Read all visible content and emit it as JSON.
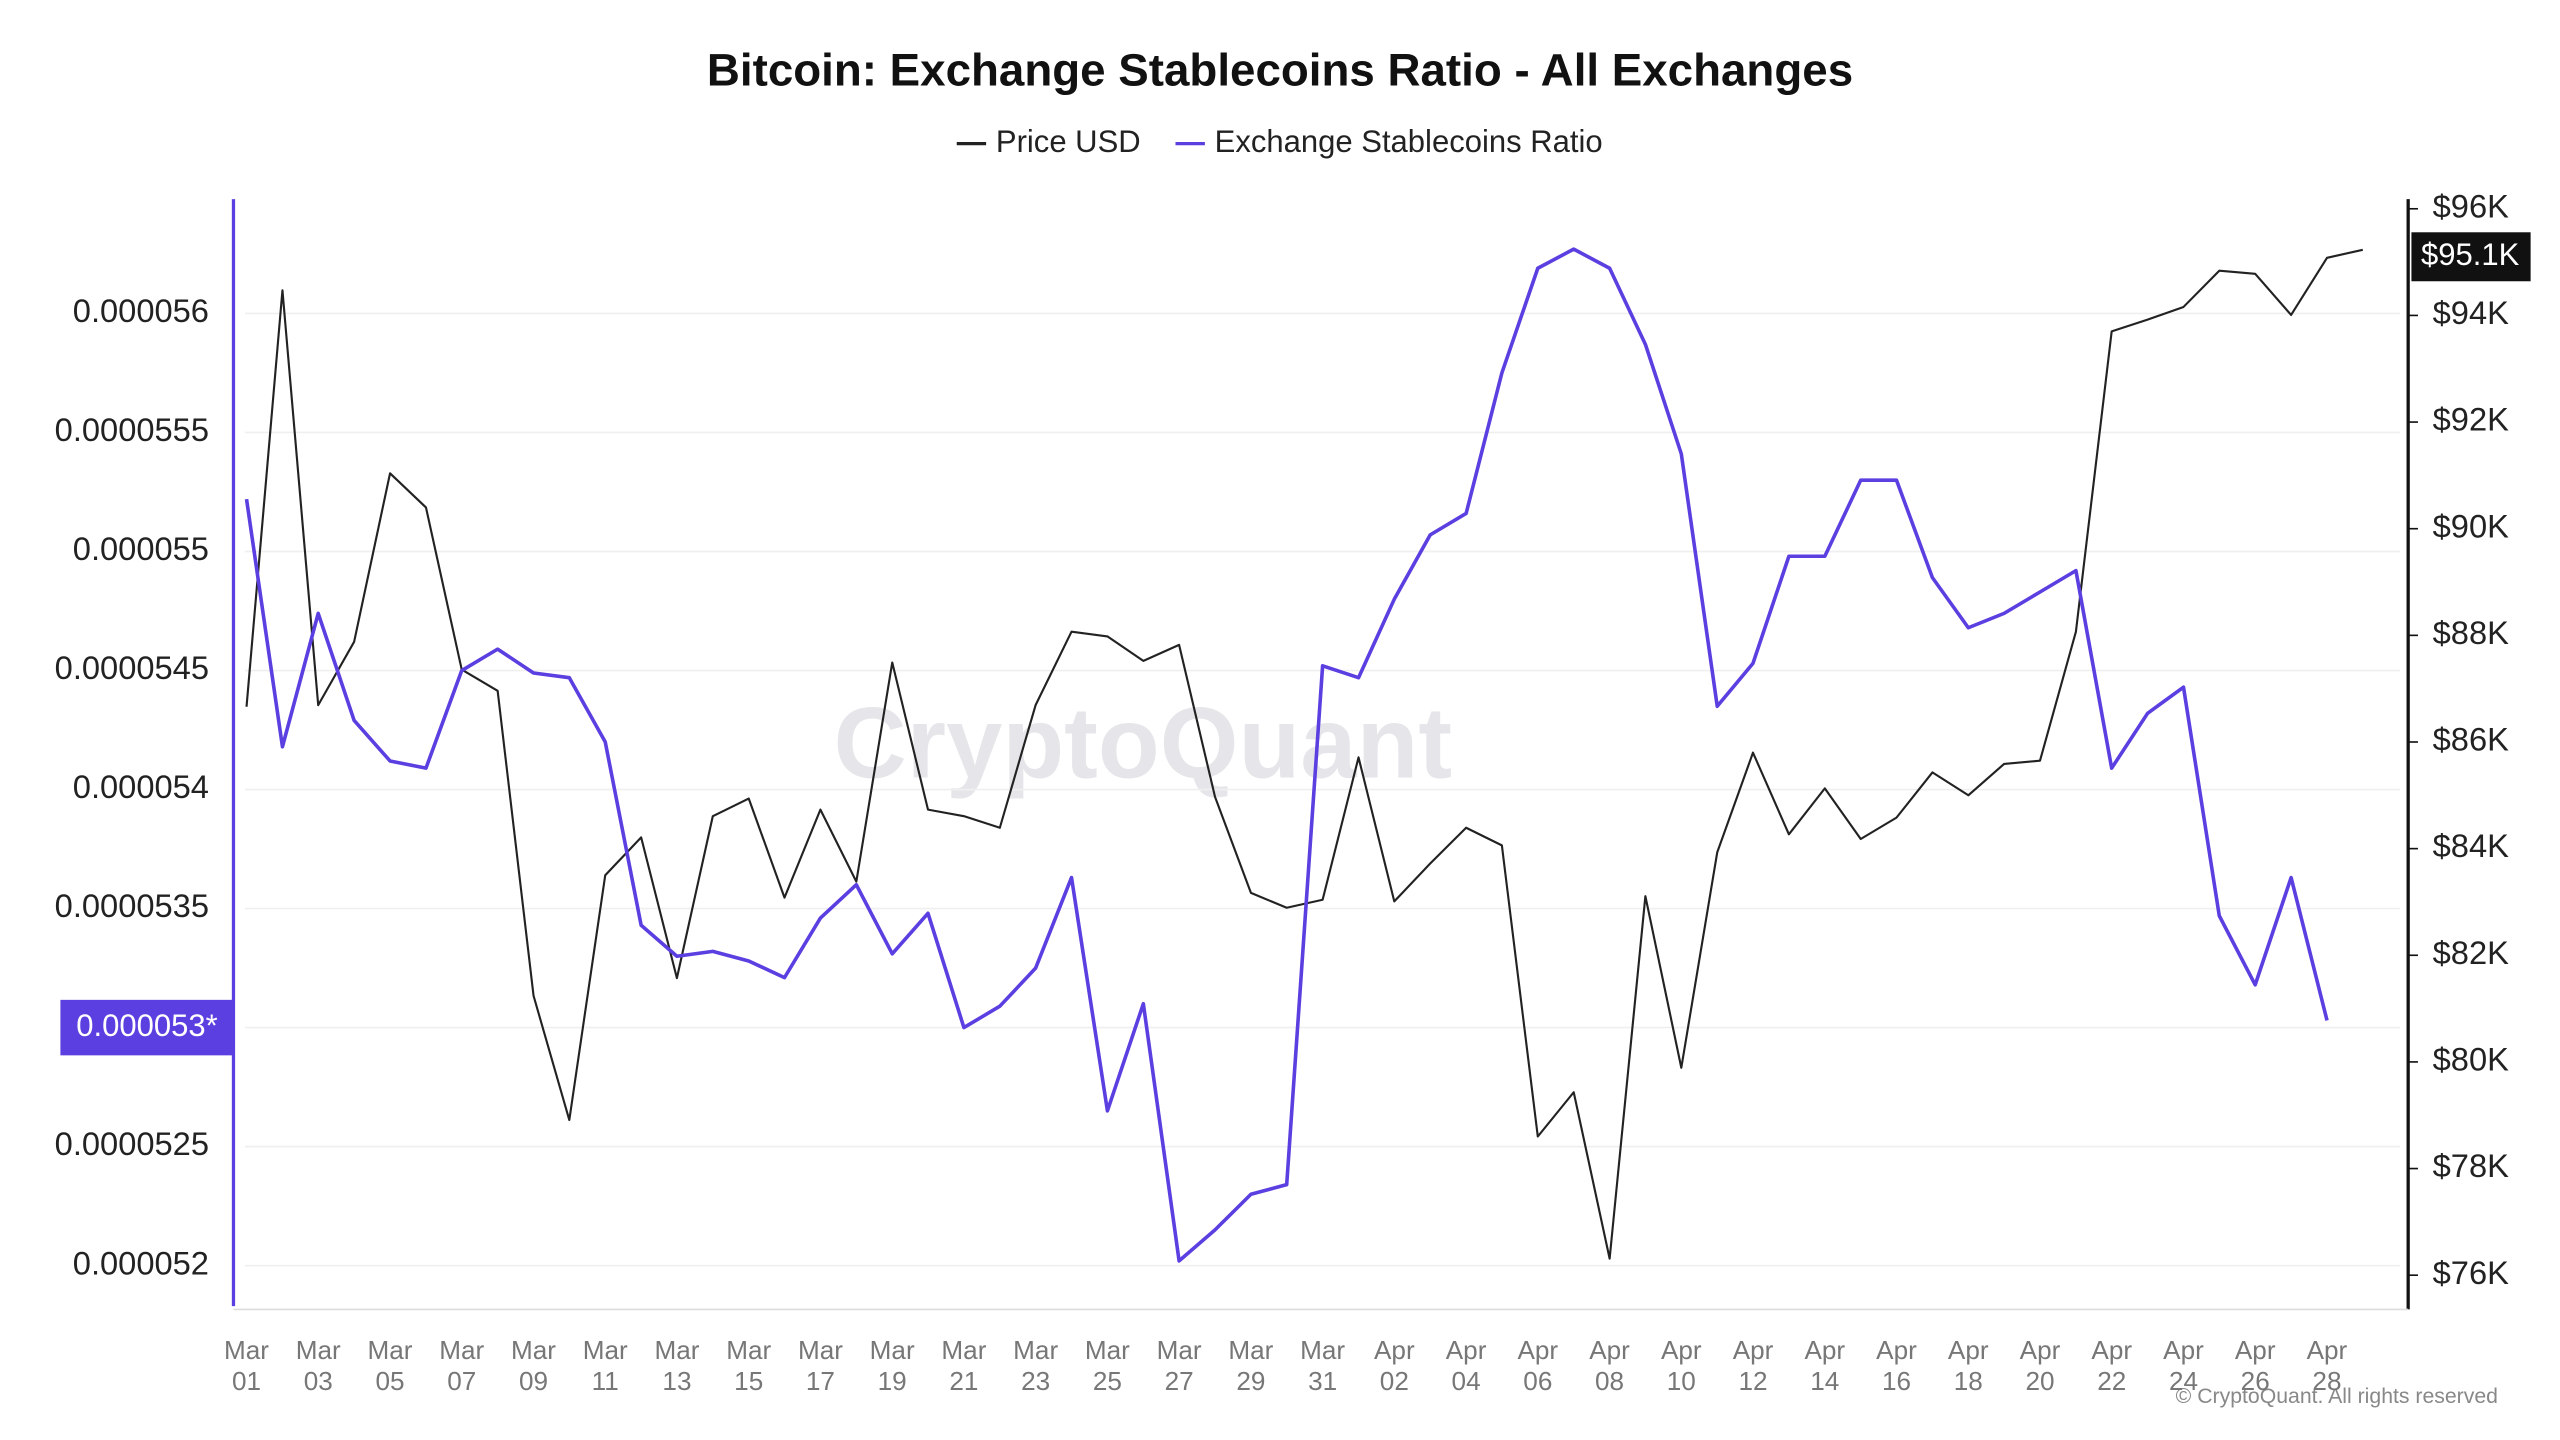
{
  "chart_data": {
    "type": "line",
    "title": "Bitcoin: Exchange Stablecoins Ratio - All Exchanges",
    "watermark": "CryptoQuant",
    "footnote": "© CryptoQuant. All rights reserved",
    "categories": [
      "Mar 01",
      null,
      "Mar 03",
      null,
      "Mar 05",
      null,
      "Mar 07",
      null,
      "Mar 09",
      null,
      "Mar 11",
      null,
      "Mar 13",
      null,
      "Mar 15",
      null,
      "Mar 17",
      null,
      "Mar 19",
      null,
      "Mar 21",
      null,
      "Mar 23",
      null,
      "Mar 25",
      null,
      "Mar 27",
      null,
      "Mar 29",
      null,
      "Mar 31",
      null,
      "Apr 02",
      null,
      "Apr 04",
      null,
      "Apr 06",
      null,
      "Apr 08",
      null,
      "Apr 10",
      null,
      "Apr 12",
      null,
      "Apr 14",
      null,
      "Apr 16",
      null,
      "Apr 18",
      null,
      "Apr 20",
      null,
      "Apr 22",
      null,
      "Apr 24",
      null,
      "Apr 26",
      null,
      "Apr 28",
      null
    ],
    "series": [
      {
        "name": "Price USD",
        "color": "#222222",
        "axis": "y2",
        "values": [
          86660,
          94470,
          86690,
          87880,
          91040,
          90400,
          87360,
          86960,
          81240,
          78910,
          83500,
          84210,
          81570,
          84610,
          84940,
          83080,
          84730,
          83380,
          87490,
          84730,
          84610,
          84390,
          86690,
          88070,
          87980,
          87520,
          87820,
          84970,
          83170,
          82890,
          83040,
          85710,
          83010,
          83720,
          84390,
          84060,
          78600,
          79430,
          76310,
          83110,
          79890,
          83930,
          85800,
          84270,
          85130,
          84180,
          84580,
          85430,
          85000,
          85590,
          85650,
          88070,
          93700,
          93920,
          94160,
          94840,
          94780,
          94010,
          95080,
          95230
        ]
      },
      {
        "name": "Exchange Stablecoins Ratio",
        "color": "#5b3fe0",
        "values": [
          5.522e-05,
          5.418e-05,
          5.474e-05,
          5.429e-05,
          5.412e-05,
          5.409e-05,
          5.45e-05,
          5.459e-05,
          5.449e-05,
          5.447e-05,
          5.42e-05,
          5.343e-05,
          5.33e-05,
          5.332e-05,
          5.328e-05,
          5.321e-05,
          5.346e-05,
          5.36e-05,
          5.331e-05,
          5.348e-05,
          5.3e-05,
          5.309e-05,
          5.325e-05,
          5.363e-05,
          5.265e-05,
          5.31e-05,
          5.202e-05,
          5.215e-05,
          5.23e-05,
          5.234e-05,
          5.452e-05,
          5.447e-05,
          5.48e-05,
          5.507e-05,
          5.516e-05,
          5.575e-05,
          5.619e-05,
          5.627e-05,
          5.619e-05,
          5.587e-05,
          5.541e-05,
          5.435e-05,
          5.453e-05,
          5.498e-05,
          5.498e-05,
          5.53e-05,
          5.53e-05,
          5.489e-05,
          5.468e-05,
          5.474e-05,
          5.483e-05,
          5.492e-05,
          5.409e-05,
          5.432e-05,
          5.443e-05,
          5.347e-05,
          5.318e-05,
          5.363e-05,
          5.303e-05,
          null
        ]
      }
    ],
    "ylim": [
      5.183e-05,
      5.648e-05
    ],
    "yticks": [
      5.2e-05,
      5.25e-05,
      5.3e-05,
      5.35e-05,
      5.4e-05,
      5.45e-05,
      5.5e-05,
      5.55e-05,
      5.6e-05
    ],
    "y2lim": [
      75420,
      96180
    ],
    "y2ticks": [
      {
        "value": 76000,
        "label": "$76K"
      },
      {
        "value": 78000,
        "label": "$78K"
      },
      {
        "value": 80000,
        "label": "$80K"
      },
      {
        "value": 82000,
        "label": "$82K"
      },
      {
        "value": 84000,
        "label": "$84K"
      },
      {
        "value": 86000,
        "label": "$86K"
      },
      {
        "value": 88000,
        "label": "$88K"
      },
      {
        "value": 90000,
        "label": "$90K"
      },
      {
        "value": 92000,
        "label": "$92K"
      },
      {
        "value": 94000,
        "label": "$94K"
      },
      {
        "value": 96000,
        "label": "$96K"
      }
    ],
    "y_current": {
      "value": 5.3e-05,
      "label": "0.000053*"
    },
    "y2_current": {
      "value": 95100,
      "label": "$95.1K"
    },
    "grid": true
  }
}
